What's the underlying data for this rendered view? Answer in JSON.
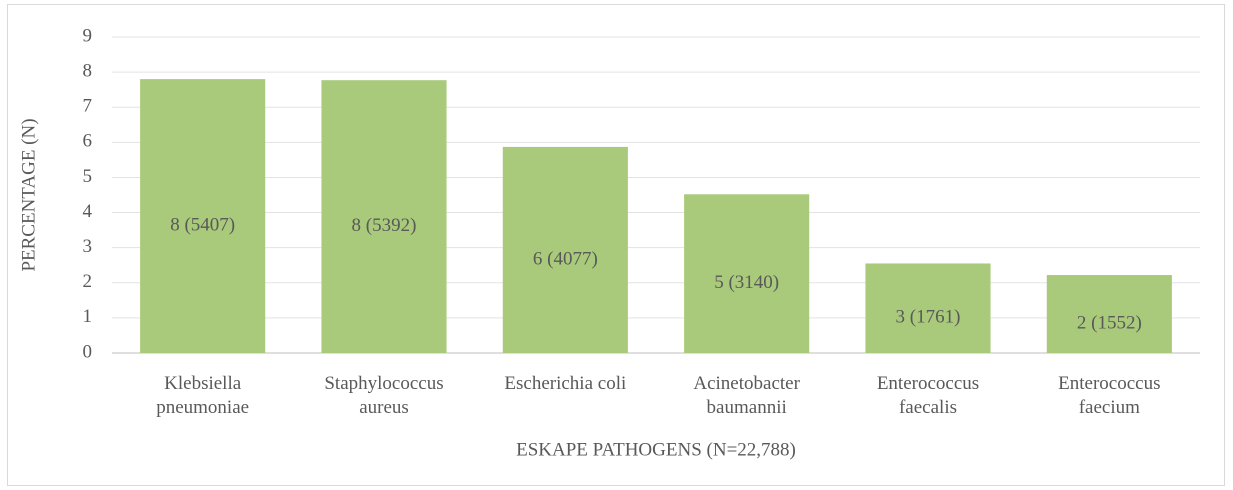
{
  "chart_data": {
    "type": "bar",
    "x_label": "ESKAPE PATHOGENS (N=22,788)",
    "y_label": "PERCENTAGE (N)",
    "categories": [
      "Klebsiella pneumoniae",
      "Staphylococcus aureus",
      "Escherichia coli",
      "Acinetobacter baumannii",
      "Enterococcus faecalis",
      "Enterococcus faecium"
    ],
    "values": [
      7.8,
      7.77,
      5.87,
      4.52,
      2.55,
      2.22
    ],
    "value_labels": [
      "8 (5407)",
      "8 (5392)",
      "6 (4077)",
      "5 (3140)",
      "3 (1761)",
      "2 (1552)"
    ],
    "color": "#a9c97b",
    "ylim": [
      0,
      9
    ],
    "yticks": [
      0,
      1,
      2,
      3,
      4,
      5,
      6,
      7,
      8,
      9
    ],
    "grid": true
  }
}
